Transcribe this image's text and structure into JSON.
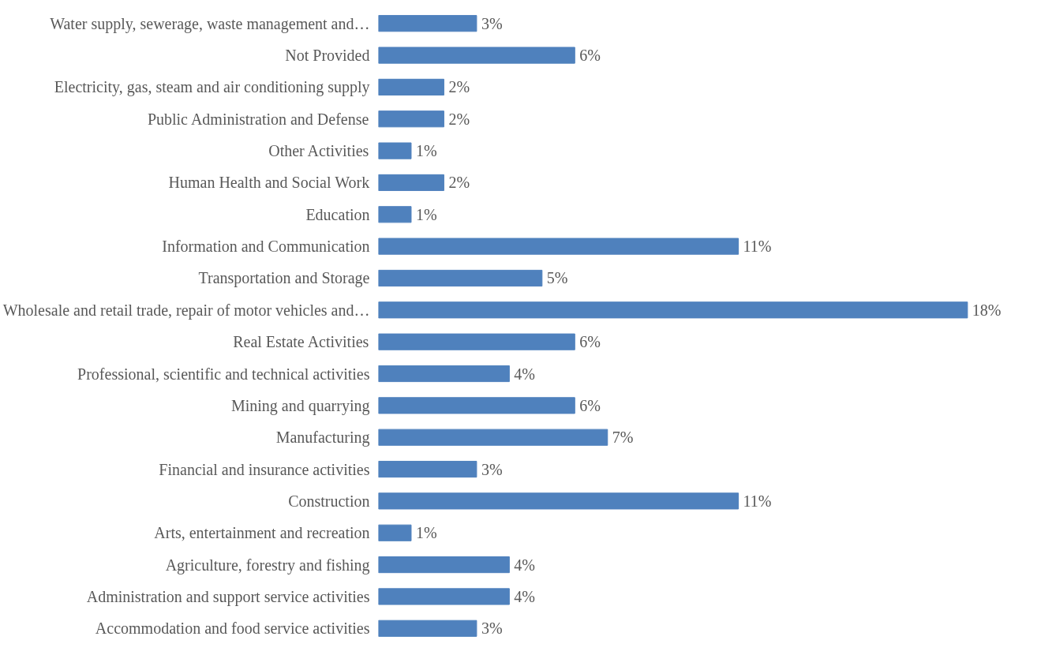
{
  "chart_data": {
    "type": "bar",
    "orientation": "horizontal",
    "categories": [
      "Water supply, sewerage, waste management and…",
      "Not Provided",
      "Electricity, gas, steam and air conditioning supply",
      "Public Administration and Defense",
      "Other Activities",
      "Human Health and Social Work",
      "Education",
      "Information and Communication",
      "Transportation and Storage",
      "Wholesale and retail trade, repair of motor vehicles and…",
      "Real Estate Activities",
      "Professional, scientific and technical activities",
      "Mining and quarrying",
      "Manufacturing",
      "Financial and insurance activities",
      "Construction",
      "Arts, entertainment and recreation",
      "Agriculture, forestry and fishing",
      "Administration and support service activities",
      "Accommodation and food service activities"
    ],
    "values": [
      3,
      6,
      2,
      2,
      1,
      2,
      1,
      11,
      5,
      18,
      6,
      4,
      6,
      7,
      3,
      11,
      1,
      4,
      4,
      3
    ],
    "value_labels": [
      "3%",
      "6%",
      "2%",
      "2%",
      "1%",
      "2%",
      "1%",
      "11%",
      "5%",
      "18%",
      "6%",
      "4%",
      "6%",
      "7%",
      "3%",
      "11%",
      "1%",
      "4%",
      "4%",
      "3%"
    ],
    "color": "#4f81bd",
    "grid": false
  }
}
